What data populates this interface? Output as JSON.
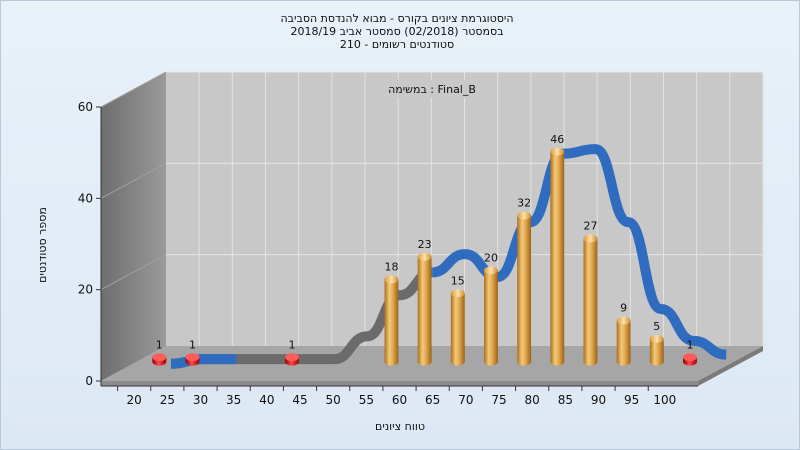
{
  "chart_data": {
    "type": "bar",
    "title_lines": [
      "היסטוגרמת ציונים בקורס - מבוא להנדסת הסביבה",
      "בסמסטר  (02/2018)  סמסטר אביב 2018/19",
      "סטודנטים רשומים - 210"
    ],
    "annotation": "במשימה : Final_B",
    "xlabel": "טווח ציונים",
    "ylabel": "מספר סטודנטים",
    "categories": [
      "20",
      "25",
      "30",
      "35",
      "40",
      "45",
      "50",
      "55",
      "60",
      "65",
      "70",
      "75",
      "80",
      "85",
      "90",
      "95",
      "100"
    ],
    "values": [
      1,
      1,
      0,
      0,
      1,
      0,
      0,
      18,
      23,
      15,
      20,
      32,
      46,
      27,
      9,
      5,
      1
    ],
    "ylim": [
      0,
      60
    ],
    "yticks": [
      0,
      20,
      40,
      60
    ],
    "grid": true,
    "curve_values": [
      0,
      1,
      1,
      1,
      1,
      1,
      6,
      15,
      20,
      24,
      19,
      31,
      46,
      47,
      31,
      12,
      5,
      2
    ],
    "colors": {
      "bar": "#e2a94f",
      "small_bar": "#d40d0d",
      "curve_high": "#2f6cc0",
      "curve_low": "#6b6b6b",
      "wall": "#7f7f7f",
      "floor": "#a6a6a6",
      "back_plane": "#c8c8c8"
    }
  }
}
